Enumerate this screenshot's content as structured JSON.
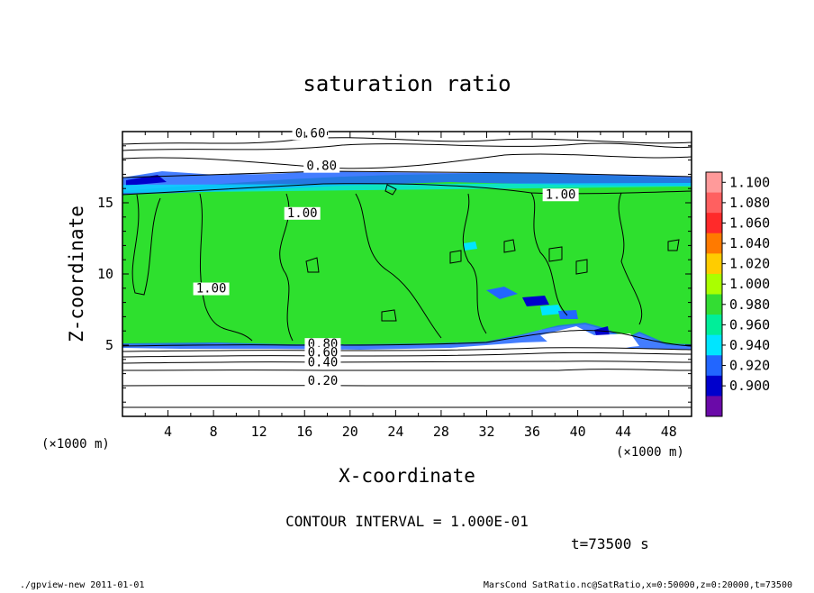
{
  "chart_data": {
    "type": "heatmap",
    "title": "saturation ratio",
    "xlabel": "X-coordinate",
    "ylabel": "Z-coordinate",
    "x_unit": "(×1000 m)",
    "y_unit": "(×1000 m)",
    "xlim": [
      0,
      50
    ],
    "ylim": [
      0,
      20
    ],
    "x_ticks": [
      "4",
      "8",
      "12",
      "16",
      "20",
      "24",
      "28",
      "32",
      "36",
      "40",
      "44",
      "48"
    ],
    "x_tick_values": [
      4,
      8,
      12,
      16,
      20,
      24,
      28,
      32,
      36,
      40,
      44,
      48
    ],
    "y_ticks": [
      "5",
      "10",
      "15"
    ],
    "y_tick_values": [
      5,
      10,
      15
    ],
    "contour_labels": [
      {
        "text": "0.60",
        "x": 16.5,
        "z": 19.6
      },
      {
        "text": "0.80",
        "x": 17.5,
        "z": 17.3
      },
      {
        "text": "1.00",
        "x": 38.5,
        "z": 15.3
      },
      {
        "text": "1.00",
        "x": 15.8,
        "z": 14.0
      },
      {
        "text": "1.00",
        "x": 7.8,
        "z": 8.7
      },
      {
        "text": "0.80",
        "x": 17.6,
        "z": 4.8
      },
      {
        "text": "0.60",
        "x": 17.6,
        "z": 4.2
      },
      {
        "text": "0.40",
        "x": 17.6,
        "z": 3.5
      },
      {
        "text": "0.20",
        "x": 17.6,
        "z": 2.2
      }
    ],
    "colorbar": {
      "labels": [
        "1.100",
        "1.080",
        "1.060",
        "1.040",
        "1.020",
        "1.000",
        "0.980",
        "0.960",
        "0.940",
        "0.920",
        "0.900"
      ],
      "colors": [
        "#ff9a9a",
        "#ff6060",
        "#ff2a2a",
        "#ff7a00",
        "#ffcc00",
        "#aaff00",
        "#33dd33",
        "#00ee99",
        "#00e5ff",
        "#2266ff",
        "#0000cc",
        "#6a0aa8"
      ]
    },
    "contour_interval_text": "CONTOUR INTERVAL = 1.000E-01",
    "time_text": "t=73500 s",
    "footer_left": "./gpview-new   2011-01-01",
    "footer_right": "MarsCond_SatRatio.nc@SatRatio,x=0:50000,z=0:20000,t=73500"
  }
}
